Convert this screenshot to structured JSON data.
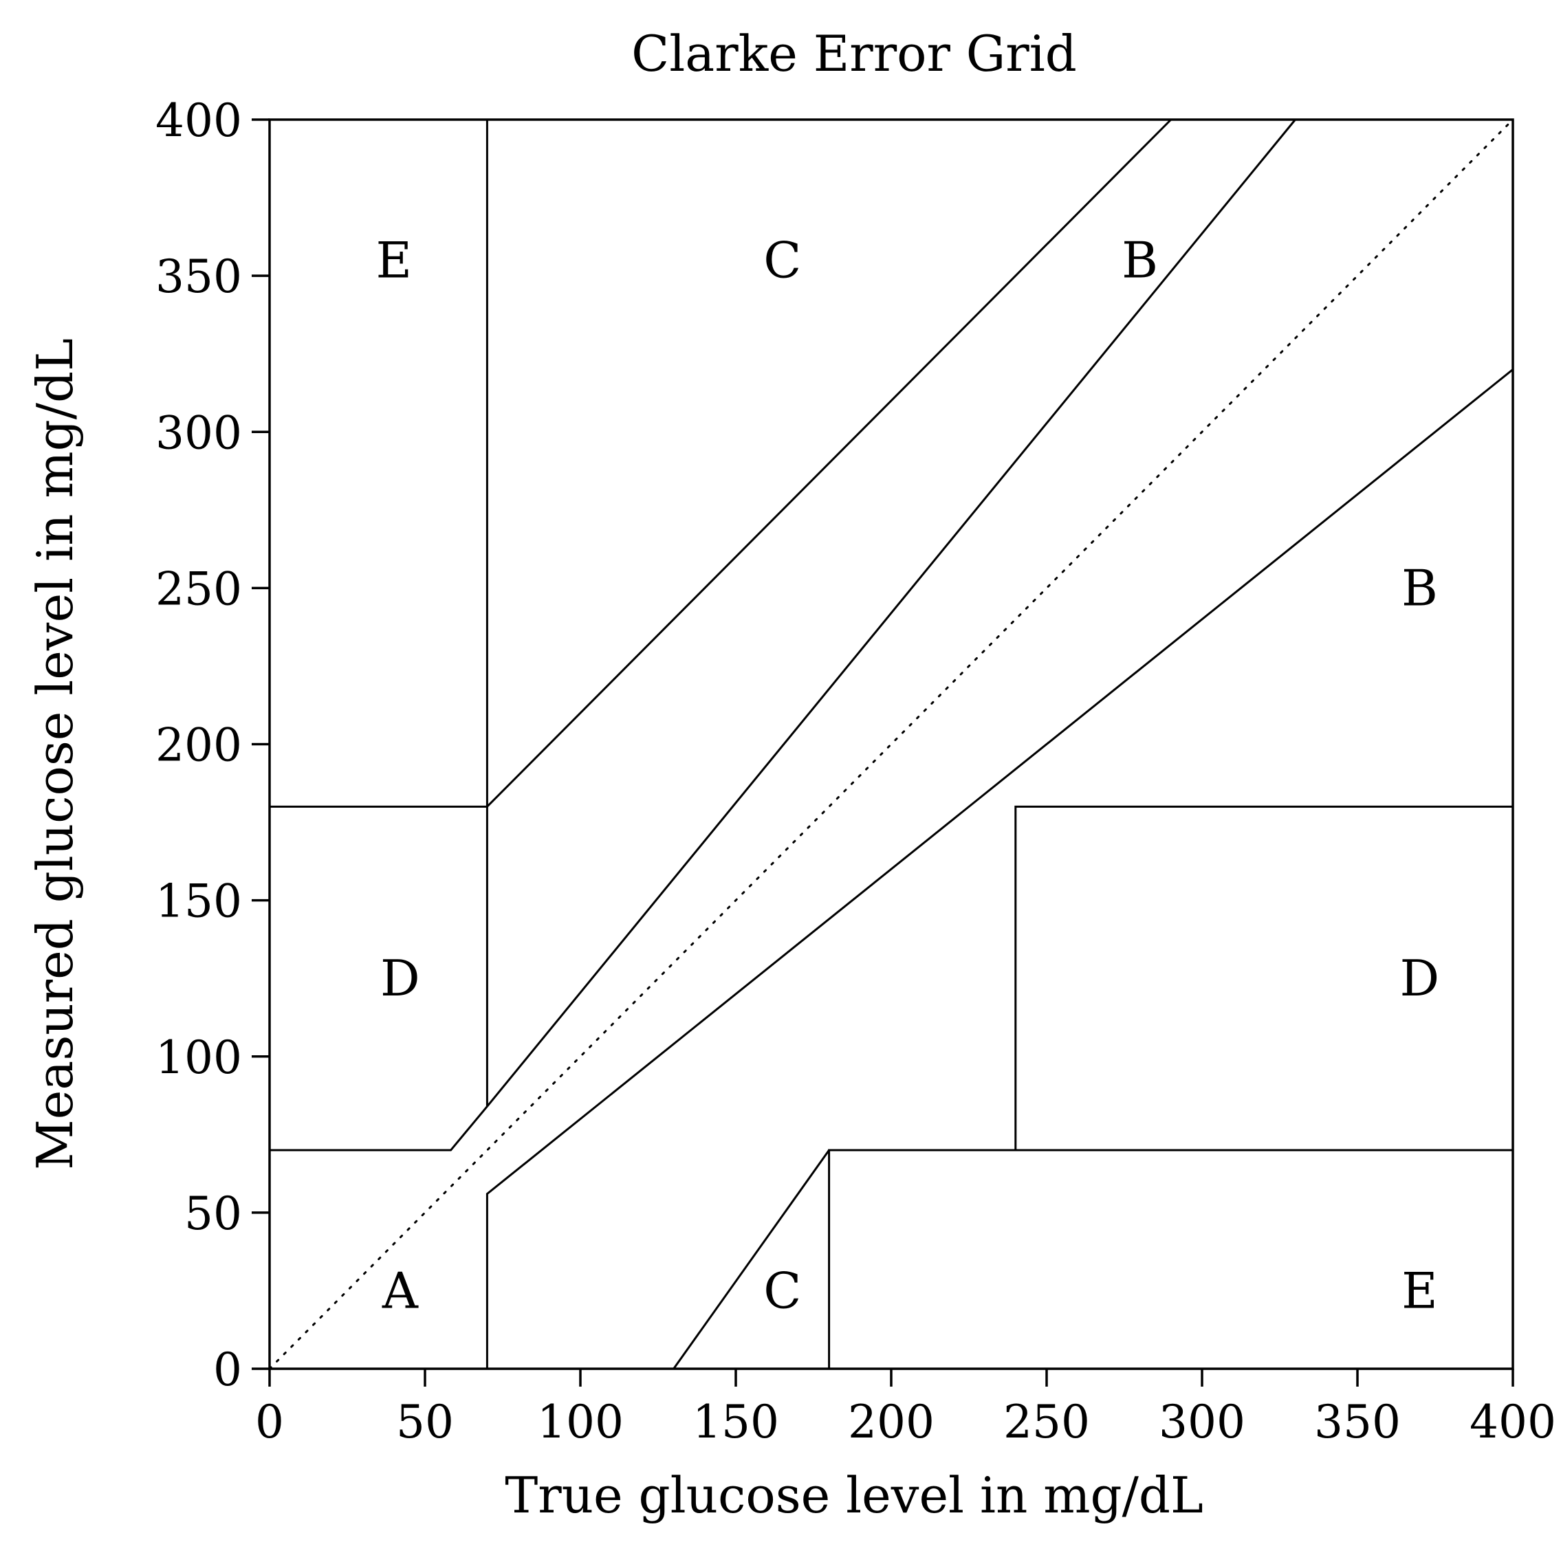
{
  "chart_data": {
    "type": "line",
    "title": "Clarke Error Grid",
    "xlabel": "True glucose level in mg/dL",
    "ylabel": "Measured glucose level in mg/dL",
    "xlim": [
      0,
      400
    ],
    "ylim": [
      0,
      400
    ],
    "x_ticks": [
      0,
      50,
      100,
      150,
      200,
      250,
      300,
      350,
      400
    ],
    "y_ticks": [
      0,
      50,
      100,
      150,
      200,
      250,
      300,
      350,
      400
    ],
    "grid": false,
    "legend": "none",
    "reference_line": {
      "style": "dotted",
      "points": [
        [
          0,
          0
        ],
        [
          400,
          400
        ]
      ]
    },
    "zone_boundaries": [
      {
        "points": [
          [
            0,
            70
          ],
          [
            58.3,
            70
          ],
          [
            70,
            84
          ]
        ]
      },
      {
        "points": [
          [
            70,
            84
          ],
          [
            70,
            180
          ],
          [
            70,
            400
          ]
        ]
      },
      {
        "points": [
          [
            0,
            180
          ],
          [
            70,
            180
          ]
        ]
      },
      {
        "points": [
          [
            70,
            180
          ],
          [
            290,
            400
          ]
        ]
      },
      {
        "points": [
          [
            70,
            84
          ],
          [
            330,
            400
          ]
        ]
      },
      {
        "points": [
          [
            70,
            0
          ],
          [
            70,
            56
          ],
          [
            400,
            320
          ]
        ]
      },
      {
        "points": [
          [
            130,
            0
          ],
          [
            180,
            70
          ]
        ]
      },
      {
        "points": [
          [
            180,
            0
          ],
          [
            180,
            70
          ],
          [
            400,
            70
          ]
        ]
      },
      {
        "points": [
          [
            240,
            70
          ],
          [
            240,
            180
          ],
          [
            400,
            180
          ]
        ]
      }
    ],
    "zone_labels": [
      {
        "text": "E",
        "x": 40,
        "y": 355
      },
      {
        "text": "C",
        "x": 165,
        "y": 355
      },
      {
        "text": "B",
        "x": 280,
        "y": 355
      },
      {
        "text": "B",
        "x": 370,
        "y": 250
      },
      {
        "text": "D",
        "x": 42,
        "y": 125
      },
      {
        "text": "D",
        "x": 370,
        "y": 125
      },
      {
        "text": "A",
        "x": 42,
        "y": 25
      },
      {
        "text": "C",
        "x": 165,
        "y": 25
      },
      {
        "text": "E",
        "x": 370,
        "y": 25
      }
    ]
  }
}
